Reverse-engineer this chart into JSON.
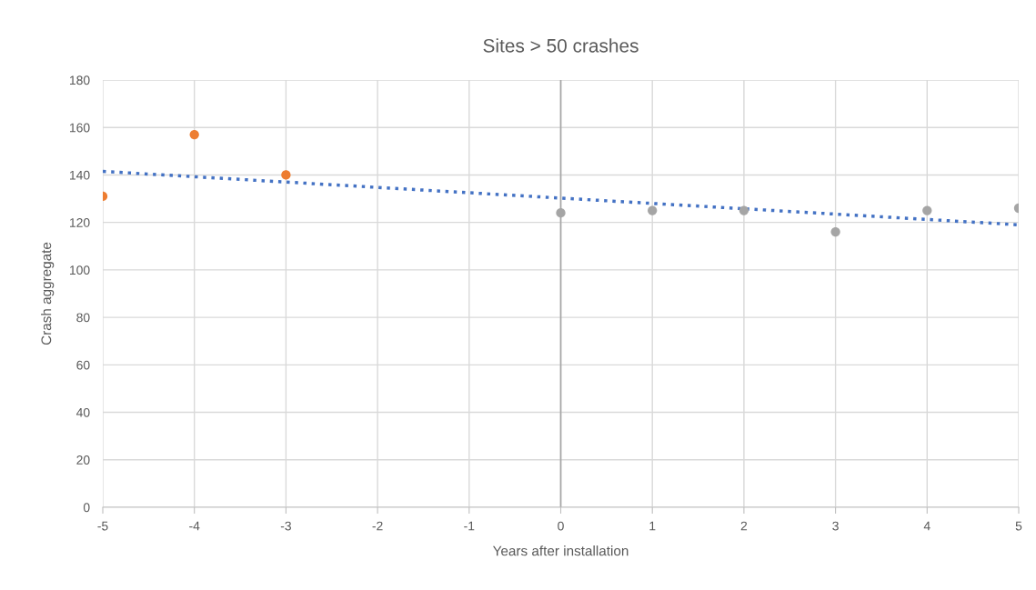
{
  "chart_data": {
    "type": "scatter",
    "title": "Sites > 50 crashes",
    "xlabel": "Years after installation",
    "ylabel": "Crash aggregate",
    "xlim": [
      -5,
      5
    ],
    "xticks": [
      -5,
      -4,
      -3,
      -2,
      -1,
      0,
      1,
      2,
      3,
      4,
      5
    ],
    "ylim": [
      0,
      180
    ],
    "yticks": [
      0,
      20,
      40,
      60,
      80,
      100,
      120,
      140,
      160,
      180
    ],
    "grid": true,
    "ref_lines": [
      {
        "axis": "x",
        "value": 0,
        "color": "#a6a6a6"
      }
    ],
    "series": [
      {
        "marker": "circle",
        "color": "#ed7d31",
        "x": [
          -5,
          -4,
          -3
        ],
        "values": [
          131,
          157,
          140
        ]
      },
      {
        "marker": "circle",
        "color": "#a5a5a5",
        "x": [
          0,
          1,
          2,
          3,
          4,
          5
        ],
        "values": [
          124,
          125,
          125,
          116,
          125,
          126
        ]
      },
      {
        "type": "line",
        "color": "#4472c4",
        "line_style": "dotted",
        "marker": "none",
        "x": [
          -5,
          5
        ],
        "values": [
          141.5,
          119
        ]
      }
    ]
  }
}
